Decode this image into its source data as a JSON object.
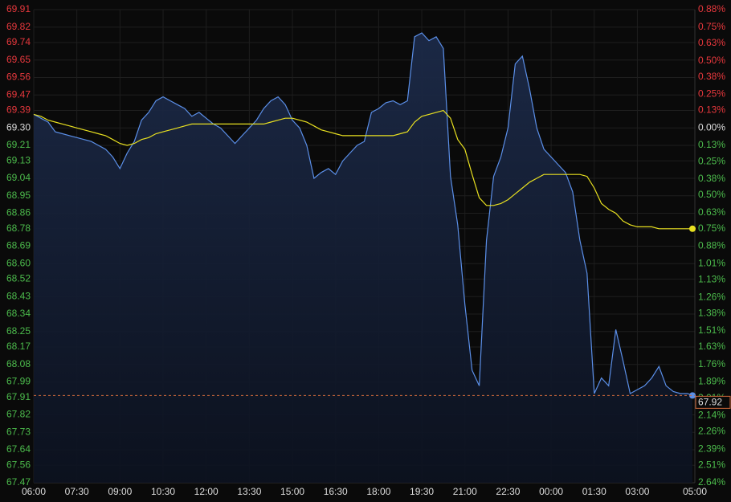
{
  "chart_data": {
    "type": "line",
    "x": [
      "06:00",
      "06:15",
      "06:30",
      "06:45",
      "07:00",
      "07:15",
      "07:30",
      "07:45",
      "08:00",
      "08:15",
      "08:30",
      "08:45",
      "09:00",
      "09:15",
      "09:30",
      "09:45",
      "10:00",
      "10:15",
      "10:30",
      "10:45",
      "11:00",
      "11:15",
      "11:30",
      "11:45",
      "12:00",
      "12:15",
      "12:30",
      "12:45",
      "13:00",
      "13:15",
      "13:30",
      "13:45",
      "14:00",
      "14:15",
      "14:30",
      "14:45",
      "15:00",
      "15:15",
      "15:30",
      "15:45",
      "16:00",
      "16:15",
      "16:30",
      "16:45",
      "17:00",
      "17:15",
      "17:30",
      "17:45",
      "18:00",
      "18:15",
      "18:30",
      "18:45",
      "19:00",
      "19:15",
      "19:30",
      "19:45",
      "20:00",
      "20:15",
      "20:30",
      "20:45",
      "21:00",
      "21:15",
      "21:30",
      "21:45",
      "22:00",
      "22:15",
      "22:30",
      "22:45",
      "23:00",
      "23:15",
      "23:30",
      "23:45",
      "00:00",
      "00:15",
      "00:30",
      "00:45",
      "01:00",
      "01:15",
      "01:30",
      "01:45",
      "02:00",
      "02:15",
      "02:30",
      "02:45",
      "03:00",
      "03:15",
      "03:30",
      "03:45",
      "04:00",
      "04:15",
      "04:30",
      "04:45",
      "04:55"
    ],
    "series": [
      {
        "color": "#5b8fe8",
        "area": true,
        "values": [
          69.37,
          69.35,
          69.33,
          69.28,
          69.27,
          69.26,
          69.25,
          69.24,
          69.23,
          69.21,
          69.19,
          69.15,
          69.09,
          69.17,
          69.23,
          69.34,
          69.38,
          69.44,
          69.46,
          69.44,
          69.42,
          69.4,
          69.36,
          69.38,
          69.35,
          69.32,
          69.3,
          69.26,
          69.22,
          69.26,
          69.3,
          69.34,
          69.4,
          69.44,
          69.46,
          69.42,
          69.34,
          69.3,
          69.21,
          69.04,
          69.07,
          69.09,
          69.06,
          69.13,
          69.17,
          69.21,
          69.23,
          69.38,
          69.4,
          69.43,
          69.44,
          69.42,
          69.44,
          69.77,
          69.79,
          69.75,
          69.77,
          69.71,
          69.05,
          68.8,
          68.39,
          68.05,
          67.97,
          68.72,
          69.05,
          69.15,
          69.3,
          69.63,
          69.67,
          69.5,
          69.3,
          69.19,
          69.15,
          69.11,
          69.07,
          68.97,
          68.72,
          68.55,
          67.93,
          68.01,
          67.97,
          68.26,
          68.1,
          67.93,
          67.95,
          67.97,
          68.01,
          68.07,
          67.97,
          67.94,
          67.93,
          67.93,
          67.92
        ]
      },
      {
        "color": "#e8e020",
        "area": false,
        "values": [
          69.37,
          69.36,
          69.34,
          69.33,
          69.32,
          69.31,
          69.3,
          69.29,
          69.28,
          69.27,
          69.26,
          69.24,
          69.22,
          69.21,
          69.22,
          69.24,
          69.25,
          69.27,
          69.28,
          69.29,
          69.3,
          69.31,
          69.32,
          69.32,
          69.32,
          69.32,
          69.32,
          69.32,
          69.32,
          69.32,
          69.32,
          69.32,
          69.32,
          69.33,
          69.34,
          69.35,
          69.35,
          69.34,
          69.33,
          69.31,
          69.29,
          69.28,
          69.27,
          69.26,
          69.26,
          69.26,
          69.26,
          69.26,
          69.26,
          69.26,
          69.26,
          69.27,
          69.28,
          69.33,
          69.36,
          69.37,
          69.38,
          69.39,
          69.35,
          69.24,
          69.19,
          69.06,
          68.94,
          68.9,
          68.9,
          68.91,
          68.93,
          68.96,
          68.99,
          69.02,
          69.04,
          69.06,
          69.06,
          69.06,
          69.06,
          69.06,
          69.06,
          69.05,
          68.99,
          68.91,
          68.88,
          68.86,
          68.82,
          68.8,
          68.79,
          68.79,
          68.79,
          68.78,
          68.78,
          68.78,
          68.78,
          68.78,
          68.78
        ]
      }
    ],
    "xlim": [
      "06:00",
      "05:00"
    ],
    "xticks": [
      "06:00",
      "07:30",
      "09:00",
      "10:30",
      "12:00",
      "13:30",
      "15:00",
      "16:30",
      "18:00",
      "19:30",
      "21:00",
      "22:30",
      "00:00",
      "01:30",
      "03:00",
      "05:00"
    ],
    "ylim": [
      67.47,
      69.91
    ],
    "yticks": [
      69.91,
      69.82,
      69.74,
      69.65,
      69.56,
      69.47,
      69.39,
      {
        "value": 69.3,
        "label": "69.30"
      },
      69.21,
      69.13,
      69.04,
      68.95,
      68.86,
      68.78,
      68.69,
      {
        "value": 68.6,
        "label": "68.60"
      },
      68.52,
      68.43,
      68.34,
      68.25,
      68.17,
      68.08,
      67.99,
      67.91,
      67.82,
      67.73,
      67.64,
      67.56,
      67.47
    ],
    "y2lim": [
      -2.64,
      0.88
    ],
    "y2ticks": [
      {
        "value": 0.88,
        "label": "0.88%"
      },
      {
        "value": 0.75,
        "label": "0.75%"
      },
      {
        "value": 0.63,
        "label": "0.63%"
      },
      {
        "value": 0.5,
        "label": "0.50%"
      },
      {
        "value": 0.38,
        "label": "0.38%"
      },
      {
        "value": 0.25,
        "label": "0.25%"
      },
      {
        "value": 0.13,
        "label": "0.13%"
      },
      {
        "value": 0,
        "label": "0.00%"
      },
      {
        "value": -0.13,
        "label": "0.13%"
      },
      {
        "value": -0.25,
        "label": "0.25%"
      },
      {
        "value": -0.38,
        "label": "0.38%"
      },
      {
        "value": -0.5,
        "label": "0.50%"
      },
      {
        "value": -0.63,
        "label": "0.63%"
      },
      {
        "value": -0.75,
        "label": "0.75%"
      },
      {
        "value": -0.88,
        "label": "0.88%"
      },
      {
        "value": -1.01,
        "label": "1.01%"
      },
      {
        "value": -1.13,
        "label": "1.13%"
      },
      {
        "value": -1.26,
        "label": "1.26%"
      },
      {
        "value": -1.38,
        "label": "1.38%"
      },
      {
        "value": -1.51,
        "label": "1.51%"
      },
      {
        "value": -1.63,
        "label": "1.63%"
      },
      {
        "value": -1.76,
        "label": "1.76%"
      },
      {
        "value": -1.89,
        "label": "1.89%"
      },
      {
        "value": -2.01,
        "label": "2.01%"
      },
      {
        "value": -2.14,
        "label": "2.14%"
      },
      {
        "value": -2.26,
        "label": "2.26%"
      },
      {
        "value": -2.39,
        "label": "2.39%"
      },
      {
        "value": -2.51,
        "label": "2.51%"
      },
      {
        "value": -2.64,
        "label": "2.64%"
      }
    ],
    "grid": true,
    "up_color": "#e8383d",
    "down_color": "#4cbb4c",
    "neutral_color": "#dddddd",
    "last_value_line": true
  }
}
